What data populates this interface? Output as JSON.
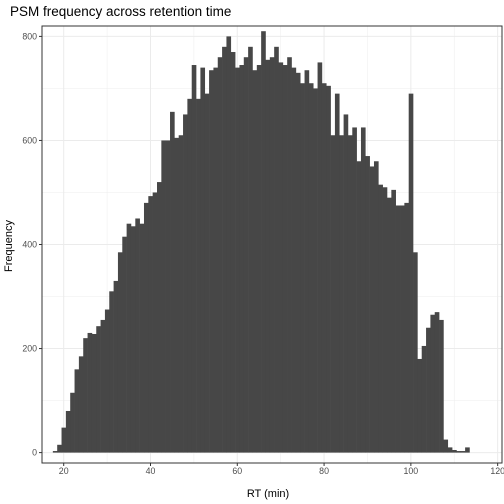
{
  "chart_data": {
    "type": "bar",
    "title": "PSM frequency across retention time",
    "xlabel": "RT (min)",
    "ylabel": "Frequency",
    "xlim": [
      15,
      121
    ],
    "ylim": [
      -20,
      820
    ],
    "x_ticks": [
      20,
      40,
      60,
      80,
      100,
      120
    ],
    "y_ticks": [
      0,
      200,
      400,
      600,
      800
    ],
    "grid": true,
    "bin_width": 1,
    "bar_color": "#474747",
    "series": [
      {
        "x": [
          18,
          19,
          20,
          21,
          22,
          23,
          24,
          25,
          26,
          27,
          28,
          29,
          30,
          31,
          32,
          33,
          34,
          35,
          36,
          37,
          38,
          39,
          40,
          41,
          42,
          43,
          44,
          45,
          46,
          47,
          48,
          49,
          50,
          51,
          52,
          53,
          54,
          55,
          56,
          57,
          58,
          59,
          60,
          61,
          62,
          63,
          64,
          65,
          66,
          67,
          68,
          69,
          70,
          71,
          72,
          73,
          74,
          75,
          76,
          77,
          78,
          79,
          80,
          81,
          82,
          83,
          84,
          85,
          86,
          87,
          88,
          89,
          90,
          91,
          92,
          93,
          94,
          95,
          96,
          97,
          98,
          99,
          100,
          101,
          102,
          103,
          104,
          105,
          106,
          107,
          108,
          109,
          110,
          111,
          112,
          113,
          114,
          115
        ],
        "values": [
          3,
          15,
          48,
          80,
          115,
          160,
          185,
          220,
          230,
          228,
          243,
          255,
          275,
          310,
          330,
          385,
          415,
          440,
          435,
          450,
          440,
          480,
          493,
          500,
          520,
          600,
          600,
          655,
          605,
          610,
          650,
          680,
          745,
          680,
          740,
          690,
          735,
          740,
          760,
          780,
          800,
          770,
          740,
          745,
          760,
          780,
          735,
          745,
          810,
          755,
          760,
          780,
          750,
          745,
          760,
          740,
          730,
          710,
          735,
          710,
          700,
          750,
          710,
          705,
          610,
          690,
          610,
          650,
          610,
          625,
          560,
          625,
          570,
          550,
          560,
          515,
          510,
          490,
          505,
          475,
          475,
          480,
          690,
          385,
          180,
          205,
          240,
          265,
          270,
          255,
          25,
          10,
          5,
          3,
          3,
          10,
          0,
          0
        ]
      }
    ]
  }
}
